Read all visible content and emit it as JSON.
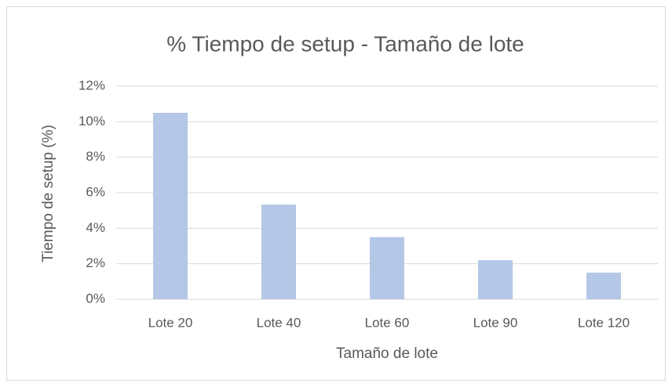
{
  "chart_data": {
    "type": "bar",
    "title": "% Tiempo de setup - Tamaño de lote",
    "x_label": "Tamaño de lote",
    "y_label": "Tiempo de setup (%)",
    "categories": [
      "Lote 20",
      "Lote 40",
      "Lote 60",
      "Lote 90",
      "Lote 120"
    ],
    "values": [
      10.5,
      5.33,
      3.5,
      2.2,
      1.5
    ],
    "color": "#b4c7e7",
    "ylim": [
      0,
      12
    ],
    "yticks": [
      {
        "value": 0,
        "label": "0%"
      },
      {
        "value": 2,
        "label": "2%"
      },
      {
        "value": 4,
        "label": "4%"
      },
      {
        "value": 6,
        "label": "6%"
      },
      {
        "value": 8,
        "label": "8%"
      },
      {
        "value": 10,
        "label": "10%"
      },
      {
        "value": 12,
        "label": "12%"
      }
    ],
    "grid": true
  }
}
